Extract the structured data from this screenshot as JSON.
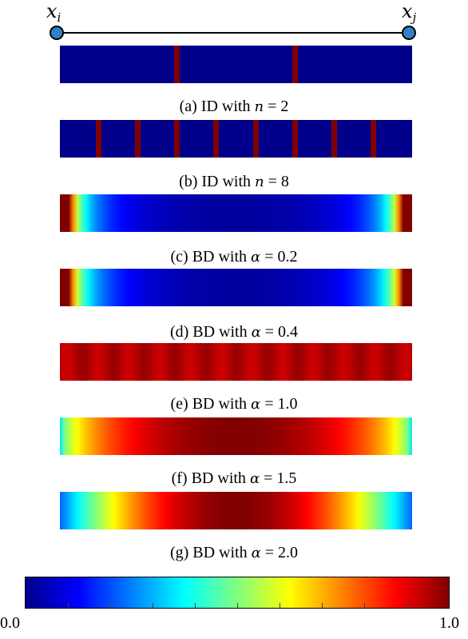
{
  "diagram": {
    "node_i_label": "x",
    "node_i_sub": "i",
    "node_j_label": "x",
    "node_j_sub": "j"
  },
  "panels": [
    {
      "id": "a",
      "caption_prefix": "(a) ID with",
      "var": "n",
      "eq": " = ",
      "value": "2",
      "kind": "stripes",
      "stripes": [
        0.333,
        0.667
      ]
    },
    {
      "id": "b",
      "caption_prefix": "(b) ID with",
      "var": "n",
      "eq": " = ",
      "value": "8",
      "kind": "stripes",
      "stripes": [
        0.111,
        0.222,
        0.333,
        0.444,
        0.556,
        0.667,
        0.778,
        0.889
      ]
    },
    {
      "id": "c",
      "caption_prefix": "(c) BD with",
      "var": "α",
      "eq": " = ",
      "value": "0.2",
      "kind": "gradient",
      "alpha": 0.2
    },
    {
      "id": "d",
      "caption_prefix": "(d) BD with",
      "var": "α",
      "eq": " = ",
      "value": "0.4",
      "kind": "gradient",
      "alpha": 0.4
    },
    {
      "id": "e",
      "caption_prefix": "(e) BD with",
      "var": "α",
      "eq": " = ",
      "value": "1.0",
      "kind": "gradient",
      "alpha": 1.0
    },
    {
      "id": "f",
      "caption_prefix": "(f) BD with",
      "var": "α",
      "eq": " = ",
      "value": "1.5",
      "kind": "gradient",
      "alpha": 1.5
    },
    {
      "id": "g",
      "caption_prefix": "(g) BD with",
      "var": "α",
      "eq": " = ",
      "value": "2.0",
      "kind": "gradient",
      "alpha": 2.0
    }
  ],
  "colorbar": {
    "min_label": "0.0",
    "max_label": "1.0",
    "colormap": "jet",
    "colors": [
      "#00008b",
      "#0000ff",
      "#0080ff",
      "#00ffff",
      "#80ff80",
      "#ffff00",
      "#ff8000",
      "#ff0000",
      "#800000"
    ]
  }
}
